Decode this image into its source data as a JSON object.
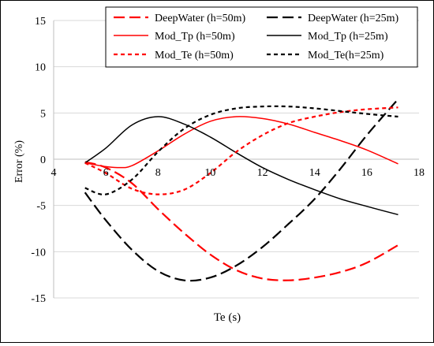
{
  "chart_data": {
    "type": "line",
    "xlabel": "Te (s)",
    "ylabel": "Error (%)",
    "xlim": [
      4,
      18
    ],
    "ylim": [
      -15,
      15
    ],
    "x_ticks": [
      "4",
      "6",
      "8",
      "10",
      "12",
      "14",
      "16",
      "18"
    ],
    "y_ticks": [
      "15",
      "10",
      "5",
      "0",
      "-5",
      "-10",
      "-15"
    ],
    "x_tick_values": [
      4,
      6,
      8,
      10,
      12,
      14,
      16,
      18
    ],
    "y_tick_values": [
      15,
      10,
      5,
      0,
      -5,
      -10,
      -15
    ],
    "grid": "horizontal",
    "legend_position": "top",
    "series": [
      {
        "name": "DeepWater (h=50m)",
        "color": "#ff0000",
        "style": "long-dash",
        "points": [
          [
            5.2,
            -0.3
          ],
          [
            6,
            -0.9
          ],
          [
            7,
            -2.6
          ],
          [
            8,
            -5.4
          ],
          [
            9,
            -8.0
          ],
          [
            10,
            -10.3
          ],
          [
            11,
            -12.0
          ],
          [
            12,
            -12.9
          ],
          [
            13,
            -13.1
          ],
          [
            14,
            -12.8
          ],
          [
            15,
            -12.2
          ],
          [
            16,
            -11.2
          ],
          [
            17.2,
            -9.3
          ]
        ]
      },
      {
        "name": "DeepWater (h=25m)",
        "color": "#000000",
        "style": "long-dash",
        "points": [
          [
            5.2,
            -3.6
          ],
          [
            6,
            -6.6
          ],
          [
            7,
            -9.8
          ],
          [
            8,
            -12.1
          ],
          [
            9,
            -13.1
          ],
          [
            10,
            -12.8
          ],
          [
            11,
            -11.5
          ],
          [
            12,
            -9.5
          ],
          [
            13,
            -7.0
          ],
          [
            14,
            -4.3
          ],
          [
            15,
            -1.0
          ],
          [
            16,
            2.6
          ],
          [
            17.2,
            6.5
          ]
        ]
      },
      {
        "name": "Mod_Tp (h=50m)",
        "color": "#ff0000",
        "style": "solid",
        "points": [
          [
            5.2,
            -0.4
          ],
          [
            6,
            -0.8
          ],
          [
            6.5,
            -0.9
          ],
          [
            7,
            -0.7
          ],
          [
            8,
            0.9
          ],
          [
            9,
            2.7
          ],
          [
            10,
            4.1
          ],
          [
            11,
            4.6
          ],
          [
            12,
            4.4
          ],
          [
            13,
            3.8
          ],
          [
            14,
            2.9
          ],
          [
            15,
            2.0
          ],
          [
            16,
            1.0
          ],
          [
            17.2,
            -0.5
          ]
        ]
      },
      {
        "name": "Mod_Tp (h=25m)",
        "color": "#000000",
        "style": "solid",
        "points": [
          [
            5.2,
            -0.4
          ],
          [
            6,
            1.2
          ],
          [
            7,
            3.7
          ],
          [
            8,
            4.6
          ],
          [
            9,
            3.8
          ],
          [
            10,
            2.4
          ],
          [
            11,
            0.7
          ],
          [
            12,
            -0.9
          ],
          [
            13,
            -2.2
          ],
          [
            14,
            -3.3
          ],
          [
            15,
            -4.3
          ],
          [
            16,
            -5.1
          ],
          [
            17.2,
            -6.0
          ]
        ]
      },
      {
        "name": "Mod_Te (h=50m)",
        "color": "#ff0000",
        "style": "short-dash",
        "points": [
          [
            5.2,
            -0.4
          ],
          [
            6,
            -1.5
          ],
          [
            7,
            -3.2
          ],
          [
            8,
            -3.8
          ],
          [
            9,
            -3.3
          ],
          [
            10,
            -1.5
          ],
          [
            11,
            0.8
          ],
          [
            12,
            2.6
          ],
          [
            13,
            3.9
          ],
          [
            14,
            4.6
          ],
          [
            15,
            5.1
          ],
          [
            16,
            5.4
          ],
          [
            17.2,
            5.6
          ]
        ]
      },
      {
        "name": "Mod_Te(h=25m)",
        "color": "#000000",
        "style": "short-dash",
        "points": [
          [
            5.2,
            -3.1
          ],
          [
            6,
            -3.8
          ],
          [
            7,
            -2.2
          ],
          [
            8,
            0.8
          ],
          [
            9,
            3.3
          ],
          [
            10,
            4.8
          ],
          [
            11,
            5.5
          ],
          [
            12,
            5.7
          ],
          [
            13,
            5.7
          ],
          [
            14,
            5.5
          ],
          [
            15,
            5.2
          ],
          [
            16,
            4.9
          ],
          [
            17.2,
            4.6
          ]
        ]
      }
    ]
  }
}
